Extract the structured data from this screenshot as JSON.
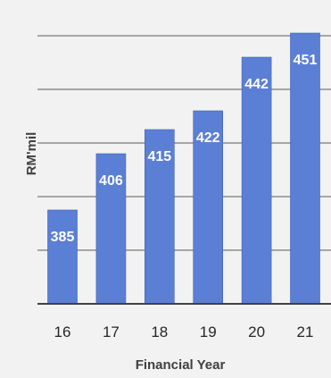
{
  "chart_data": {
    "type": "bar",
    "categories": [
      "16",
      "17",
      "18",
      "19",
      "20",
      "21"
    ],
    "values": [
      385,
      406,
      415,
      422,
      442,
      451
    ],
    "data_labels": [
      "385",
      "406",
      "415",
      "422",
      "442",
      "451"
    ],
    "title": "",
    "xlabel": "Financial Year",
    "ylabel": "RM'mil",
    "ylim": [
      350,
      460
    ],
    "grid": true,
    "colors": {
      "bar": "#5b7fd4",
      "bar_edge": "#3f62b5",
      "grid": "#595959",
      "axis": "#404040",
      "background": "#f2f2f2",
      "data_label": "#ffffff"
    }
  }
}
